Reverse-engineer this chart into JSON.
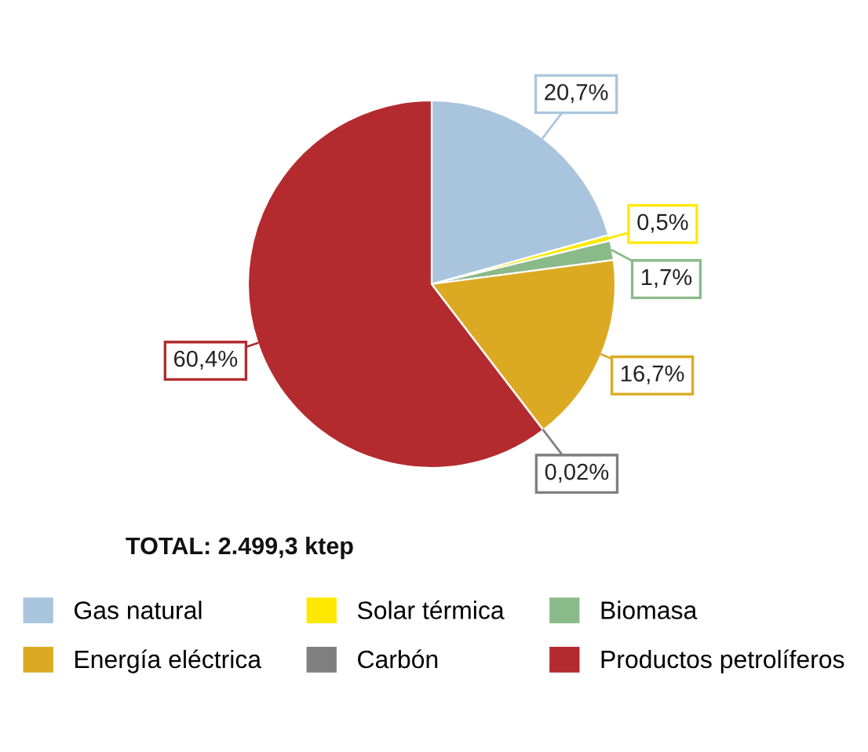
{
  "chart_data": {
    "type": "pie",
    "categories": [
      "Gas natural",
      "Solar térmica",
      "Biomasa",
      "Energía eléctrica",
      "Carbón",
      "Productos petrolíferos"
    ],
    "values": [
      20.7,
      0.5,
      1.7,
      16.7,
      0.02,
      60.4
    ],
    "colors": [
      "#a9c5de",
      "#ffe800",
      "#8bba8a",
      "#dcaa22",
      "#808080",
      "#b32b2e"
    ],
    "value_labels": [
      "20,7%",
      "0,5%",
      "1,7%",
      "16,7%",
      "0,02%",
      "60,4%"
    ],
    "annotations": [
      "TOTAL: 2.499,3 ktep"
    ],
    "legend": "bottom"
  }
}
